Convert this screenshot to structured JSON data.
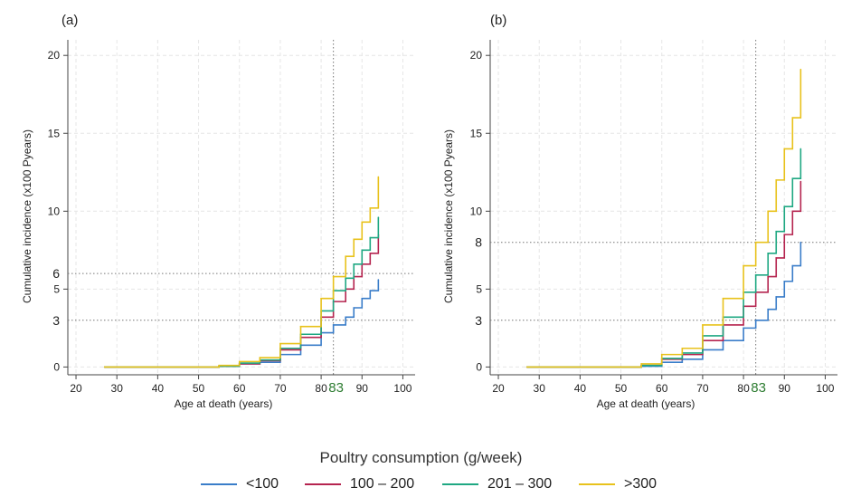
{
  "chart_data": [
    {
      "panel_label": "(a)",
      "type": "line",
      "xlabel": "Age at death (years)",
      "ylabel": "Cumulative incidence (x100 Pyears)",
      "xlim": [
        18,
        103
      ],
      "ylim": [
        -0.5,
        21
      ],
      "x_ticks": [
        "20",
        "30",
        "40",
        "50",
        "60",
        "70",
        "80",
        "90",
        "100"
      ],
      "y_ticks": [
        "0",
        "5",
        "10",
        "15",
        "20"
      ],
      "extra_y_ticks": [
        "3",
        "6"
      ],
      "ref_lines": {
        "h": [
          3,
          6
        ],
        "v": 83,
        "v_label": "83"
      },
      "grid": true,
      "series": [
        {
          "name": "<100",
          "color": "#3a7dc9",
          "x": [
            27,
            50,
            55,
            60,
            65,
            70,
            75,
            80,
            83,
            86,
            88,
            90,
            92,
            94
          ],
          "y": [
            0,
            0,
            0.05,
            0.2,
            0.3,
            0.8,
            1.4,
            2.2,
            2.7,
            3.2,
            3.8,
            4.4,
            4.9,
            5.6
          ]
        },
        {
          "name": "100 – 200",
          "color": "#b5244f",
          "x": [
            27,
            50,
            55,
            60,
            65,
            70,
            75,
            80,
            83,
            86,
            88,
            90,
            92,
            94
          ],
          "y": [
            0,
            0,
            0.05,
            0.2,
            0.4,
            1.1,
            1.9,
            3.2,
            4.2,
            5.0,
            5.8,
            6.6,
            7.3,
            8.5
          ]
        },
        {
          "name": "201 – 300",
          "color": "#1fa882",
          "x": [
            27,
            50,
            55,
            60,
            65,
            70,
            75,
            80,
            83,
            86,
            88,
            90,
            92,
            94
          ],
          "y": [
            0,
            0,
            0.05,
            0.25,
            0.45,
            1.2,
            2.1,
            3.6,
            4.9,
            5.7,
            6.6,
            7.5,
            8.3,
            9.6
          ]
        },
        {
          "name": ">300",
          "color": "#e8c21c",
          "x": [
            27,
            50,
            55,
            60,
            65,
            70,
            75,
            80,
            83,
            86,
            88,
            90,
            92,
            94
          ],
          "y": [
            0,
            0,
            0.1,
            0.35,
            0.6,
            1.5,
            2.6,
            4.4,
            5.8,
            7.1,
            8.2,
            9.3,
            10.2,
            12.2
          ]
        }
      ]
    },
    {
      "panel_label": "(b)",
      "type": "line",
      "xlabel": "Age at death (years)",
      "ylabel": "Cumulative incidence (x100 Pyears)",
      "xlim": [
        18,
        103
      ],
      "ylim": [
        -0.5,
        21
      ],
      "x_ticks": [
        "20",
        "30",
        "40",
        "50",
        "60",
        "70",
        "80",
        "90",
        "100"
      ],
      "y_ticks": [
        "0",
        "5",
        "10",
        "15",
        "20"
      ],
      "extra_y_ticks": [
        "3",
        "8"
      ],
      "ref_lines": {
        "h": [
          3,
          8
        ],
        "v": 83,
        "v_label": "83"
      },
      "grid": true,
      "series": [
        {
          "name": "<100",
          "color": "#3a7dc9",
          "x": [
            27,
            50,
            55,
            60,
            65,
            70,
            75,
            80,
            83,
            86,
            88,
            90,
            92,
            94
          ],
          "y": [
            0,
            0,
            0.05,
            0.3,
            0.5,
            1.1,
            1.7,
            2.5,
            3.0,
            3.7,
            4.5,
            5.5,
            6.5,
            8.0
          ]
        },
        {
          "name": "100 – 200",
          "color": "#b5244f",
          "x": [
            27,
            50,
            55,
            60,
            65,
            70,
            75,
            80,
            83,
            86,
            88,
            90,
            92,
            94
          ],
          "y": [
            0,
            0,
            0.1,
            0.5,
            0.8,
            1.7,
            2.7,
            3.9,
            4.8,
            5.8,
            7.0,
            8.5,
            10.0,
            11.9
          ]
        },
        {
          "name": "201 – 300",
          "color": "#1fa882",
          "x": [
            27,
            50,
            55,
            60,
            65,
            70,
            75,
            80,
            83,
            86,
            88,
            90,
            92,
            94
          ],
          "y": [
            0,
            0,
            0.1,
            0.55,
            0.9,
            2.0,
            3.2,
            4.8,
            5.9,
            7.3,
            8.7,
            10.3,
            12.1,
            14.0
          ]
        },
        {
          "name": ">300",
          "color": "#e8c21c",
          "x": [
            27,
            50,
            55,
            60,
            65,
            70,
            75,
            80,
            83,
            86,
            88,
            90,
            92,
            94
          ],
          "y": [
            0,
            0,
            0.2,
            0.8,
            1.2,
            2.7,
            4.4,
            6.5,
            8.0,
            10.0,
            12.0,
            14.0,
            16.0,
            19.1
          ]
        }
      ]
    }
  ],
  "legend": {
    "title": "Poultry consumption (g/week)",
    "items": [
      {
        "label": "<100",
        "color": "#3a7dc9"
      },
      {
        "label": "100 – 200",
        "color": "#b5244f"
      },
      {
        "label": "201 – 300",
        "color": "#1fa882"
      },
      {
        "label": ">300",
        "color": "#e8c21c"
      }
    ]
  },
  "colors": {
    "ref_line": "#777777",
    "ref_label": "#2e7d32",
    "grid": "#e6e6e6",
    "axis": "#444444"
  }
}
